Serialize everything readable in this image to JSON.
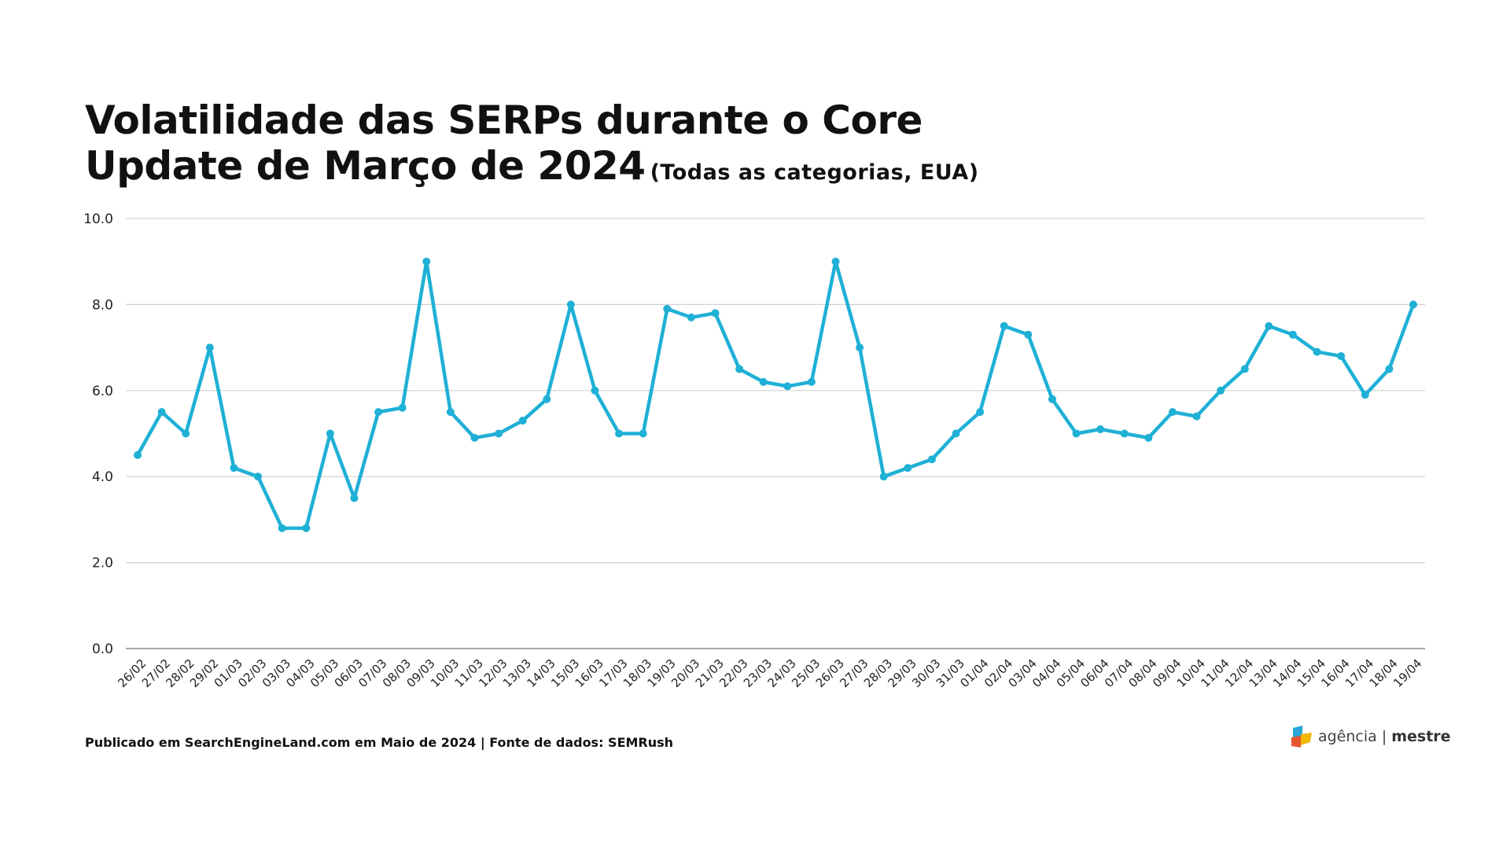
{
  "title_line1": "Volatilidade das SERPs durante o Core",
  "title_line2": "Update de Março de 2024",
  "subtitle": "(Todas as categorias, EUA)",
  "footer": "Publicado em SearchEngineLand.com em Maio de 2024 | Fonte de dados: SEMRush",
  "logo": {
    "text_left": "agência",
    "separator": "|",
    "text_right": "mestre"
  },
  "chart_data": {
    "type": "line",
    "title": "Volatilidade das SERPs durante o Core Update de Março de 2024 (Todas as categorias, EUA)",
    "xlabel": "",
    "ylabel": "",
    "ylim": [
      0,
      10
    ],
    "yticks": [
      "0.0",
      "2.0",
      "4.0",
      "6.0",
      "8.0",
      "10.0"
    ],
    "grid": true,
    "line_color": "#1FB0D6",
    "categories": [
      "26/02",
      "27/02",
      "28/02",
      "29/02",
      "01/03",
      "02/03",
      "03/03",
      "04/03",
      "05/03",
      "06/03",
      "07/03",
      "08/03",
      "09/03",
      "10/03",
      "11/03",
      "12/03",
      "13/03",
      "14/03",
      "15/03",
      "16/03",
      "17/03",
      "18/03",
      "19/03",
      "20/03",
      "21/03",
      "22/03",
      "23/03",
      "24/03",
      "25/03",
      "26/03",
      "27/03",
      "28/03",
      "29/03",
      "30/03",
      "31/03",
      "01/04",
      "02/04",
      "03/04",
      "04/04",
      "05/04",
      "06/04",
      "07/04",
      "08/04",
      "09/04",
      "10/04",
      "11/04",
      "12/04",
      "13/04",
      "14/04",
      "15/04",
      "16/04",
      "17/04",
      "18/04",
      "19/04"
    ],
    "values": [
      4.5,
      5.5,
      5.0,
      7.0,
      4.2,
      4.0,
      2.8,
      2.8,
      5.0,
      3.5,
      5.5,
      5.6,
      9.0,
      5.5,
      4.9,
      5.0,
      5.3,
      5.8,
      8.0,
      6.0,
      5.0,
      5.0,
      7.9,
      7.7,
      7.8,
      6.5,
      6.2,
      6.1,
      6.2,
      9.0,
      7.0,
      4.0,
      4.2,
      4.4,
      5.0,
      5.5,
      7.5,
      7.3,
      5.8,
      5.0,
      5.1,
      5.0,
      4.9,
      5.5,
      5.4,
      6.0,
      6.5,
      7.5,
      7.3,
      6.9,
      6.8,
      5.9,
      6.5,
      8.0
    ]
  }
}
